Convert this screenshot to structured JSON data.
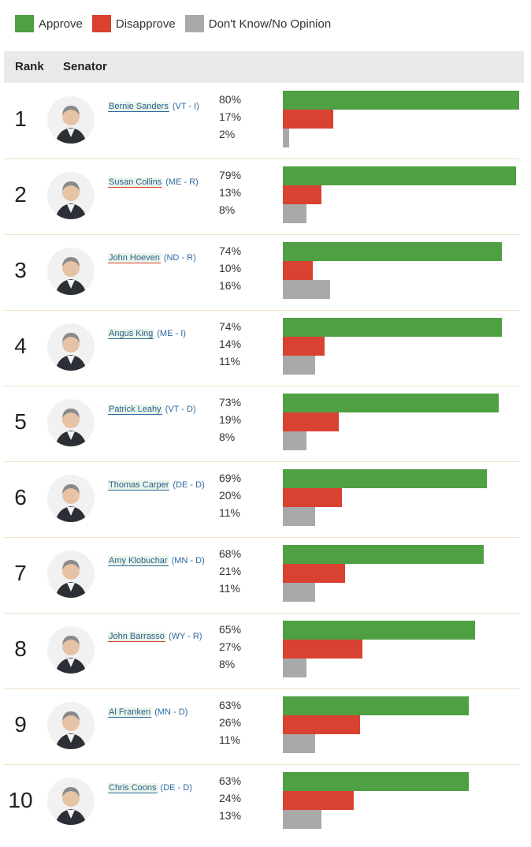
{
  "legend": [
    {
      "label": "Approve",
      "color": "#4fa043"
    },
    {
      "label": "Disapprove",
      "color": "#d94131"
    },
    {
      "label": "Don't Know/No Opinion",
      "color": "#a9a9a9"
    }
  ],
  "table": {
    "header_rank": "Rank",
    "header_senator": "Senator"
  },
  "chart_data": {
    "type": "bar",
    "orientation": "horizontal",
    "xlim": [
      0,
      80
    ],
    "series_names": [
      "Approve",
      "Disapprove",
      "Don't Know/No Opinion"
    ],
    "colors": {
      "approve": "#4fa043",
      "disapprove": "#d94131",
      "dk": "#a9a9a9"
    },
    "rows": [
      {
        "rank": "1",
        "name": "Bernie Sanders",
        "party": "(VT - I)",
        "underline": "#2b6aa0",
        "approve": 80,
        "disapprove": 17,
        "dk": 2
      },
      {
        "rank": "2",
        "name": "Susan Collins",
        "party": "(ME - R)",
        "underline": "#d94131",
        "approve": 79,
        "disapprove": 13,
        "dk": 8
      },
      {
        "rank": "3",
        "name": "John Hoeven",
        "party": "(ND - R)",
        "underline": "#d94131",
        "approve": 74,
        "disapprove": 10,
        "dk": 16
      },
      {
        "rank": "4",
        "name": "Angus King",
        "party": "(ME - I)",
        "underline": "#2b6aa0",
        "approve": 74,
        "disapprove": 14,
        "dk": 11
      },
      {
        "rank": "5",
        "name": "Patrick Leahy",
        "party": "(VT - D)",
        "underline": "#2b6aa0",
        "approve": 73,
        "disapprove": 19,
        "dk": 8
      },
      {
        "rank": "6",
        "name": "Thomas Carper",
        "party": "(DE - D)",
        "underline": "#2b6aa0",
        "approve": 69,
        "disapprove": 20,
        "dk": 11
      },
      {
        "rank": "7",
        "name": "Amy Klobuchar",
        "party": "(MN - D)",
        "underline": "#2b6aa0",
        "approve": 68,
        "disapprove": 21,
        "dk": 11
      },
      {
        "rank": "8",
        "name": "John Barrasso",
        "party": "(WY - R)",
        "underline": "#d94131",
        "approve": 65,
        "disapprove": 27,
        "dk": 8
      },
      {
        "rank": "9",
        "name": "Al Franken",
        "party": "(MN - D)",
        "underline": "#2b6aa0",
        "approve": 63,
        "disapprove": 26,
        "dk": 11
      },
      {
        "rank": "10",
        "name": "Chris Coons",
        "party": "(DE - D)",
        "underline": "#2b6aa0",
        "approve": 63,
        "disapprove": 24,
        "dk": 13
      }
    ]
  }
}
